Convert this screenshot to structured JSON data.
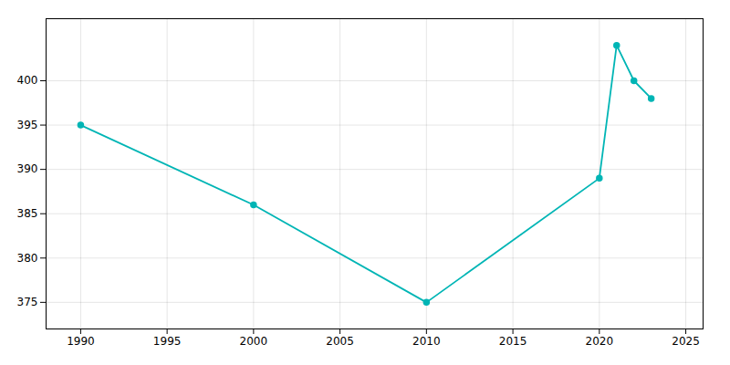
{
  "chart_data": {
    "type": "line",
    "x": [
      1990,
      2000,
      2010,
      2020,
      2021,
      2022,
      2023
    ],
    "values": [
      395,
      386,
      375,
      389,
      404,
      400,
      398
    ],
    "color": "#00b5b5",
    "marker": "circle",
    "xlim": [
      1988,
      2026
    ],
    "ylim": [
      372,
      407
    ],
    "xticks": [
      1990,
      1995,
      2000,
      2005,
      2010,
      2015,
      2020,
      2025
    ],
    "yticks": [
      375,
      380,
      385,
      390,
      395,
      400
    ],
    "grid": true
  }
}
